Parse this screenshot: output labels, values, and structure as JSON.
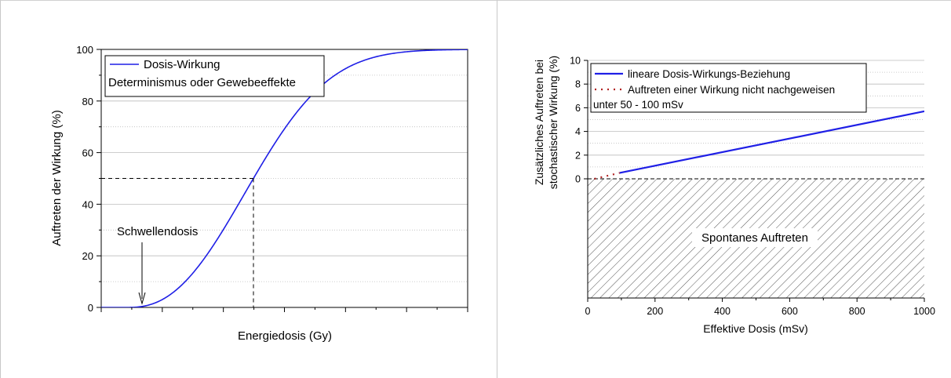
{
  "chart_data": [
    {
      "type": "line",
      "xlabel": "Energiedosis (Gy)",
      "ylabel": "Auftreten der Wirkung (%)",
      "ylim": [
        0,
        100
      ],
      "yticks": [
        "0",
        "20",
        "40",
        "60",
        "80",
        "100"
      ],
      "x_tick_labels": false,
      "grid": true,
      "legend_placement": "top-left",
      "legend": [
        "Dosis-Wirkung",
        "Determinismus oder Gewebeeffekte"
      ],
      "series": [
        {
          "name": "Dosis-Wirkung",
          "color": "#1f1fe6",
          "note": "sigmoid curve starting at 0 near the threshold, reaching 50% at the marked dose, approaching ~99% at the right edge"
        }
      ],
      "annotations": {
        "threshold_label": "Schwellendosis",
        "reference_level_percent": 50
      }
    },
    {
      "type": "line",
      "xlabel": "Effektive Dosis (mSv)",
      "ylabel_line1": "Zusätzliches Auftreten bei",
      "ylabel_line2": "stochastischer Wirkung (%)",
      "xlim": [
        0,
        1000
      ],
      "ylim": [
        -10,
        10
      ],
      "xticks": [
        "0",
        "200",
        "400",
        "600",
        "800",
        "1000"
      ],
      "yticks": [
        "0",
        "2",
        "4",
        "6",
        "8",
        "10"
      ],
      "grid": true,
      "legend_placement": "top-left",
      "legend": [
        "lineare Dosis-Wirkungs-Beziehung",
        "Auftreten einer Wirkung nicht nachgeweisen",
        "unter 50 - 100 mSv"
      ],
      "series": [
        {
          "name": "lineare Dosis-Wirkungs-Beziehung",
          "color": "#1f1fe6",
          "x": [
            95,
            1000
          ],
          "y": [
            0.5,
            5.7
          ]
        },
        {
          "name": "Auftreten einer Wirkung nicht nachgeweisen",
          "color": "#b22222",
          "x": [
            20,
            95
          ],
          "y": [
            0.0,
            0.5
          ]
        }
      ],
      "region_label": "Spontanes Auftreten"
    }
  ]
}
